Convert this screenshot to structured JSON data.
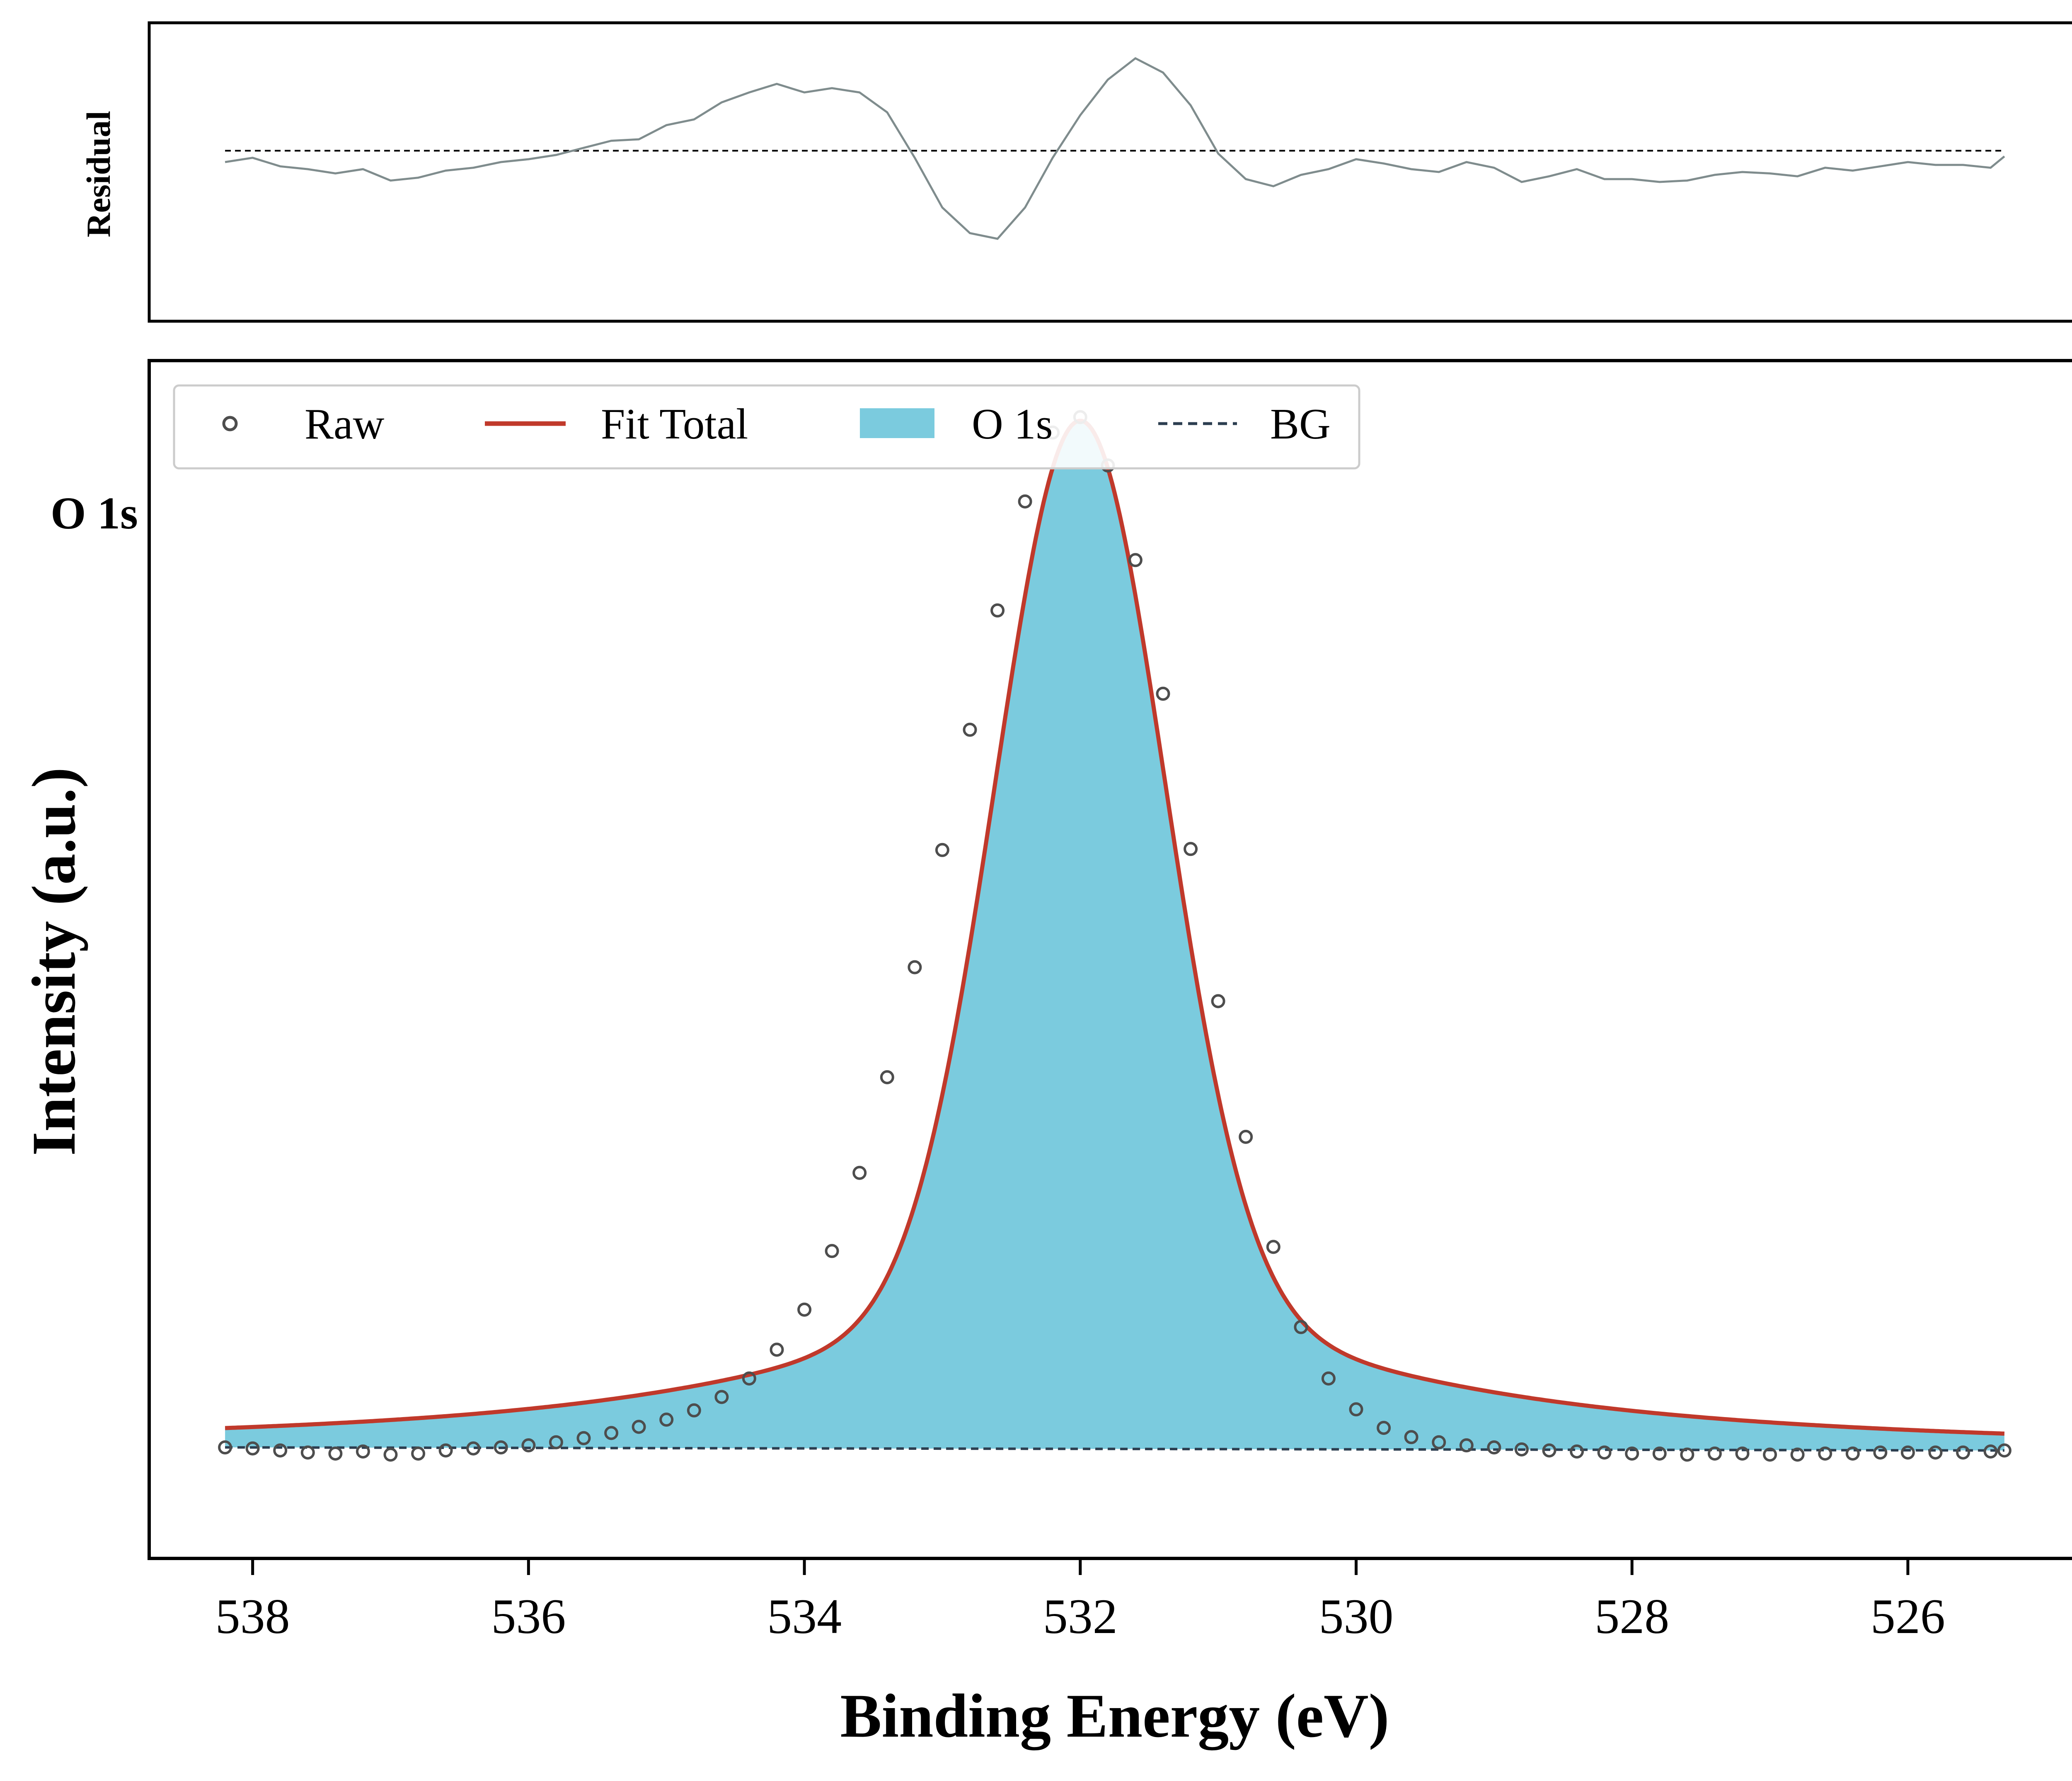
{
  "chart_data": {
    "type": "line",
    "x_axis": {
      "label": "Binding Energy (eV)",
      "reversed": true,
      "range": [
        538.75,
        524.75
      ],
      "ticks": [
        538,
        536,
        534,
        532,
        530,
        528,
        526
      ]
    },
    "y_axis": {
      "label": "Intensity (a.u.)",
      "range": [
        -0.105,
        1.06
      ],
      "ticks_shown": false
    },
    "annotation": "O 1s",
    "legend": {
      "placement": "top-left",
      "entries": [
        {
          "key": "raw",
          "label": "Raw",
          "style": "open-circle"
        },
        {
          "key": "fit",
          "label": "Fit Total",
          "style": "solid-line"
        },
        {
          "key": "peak",
          "label": "O 1s",
          "style": "filled-area"
        },
        {
          "key": "bg",
          "label": "BG",
          "style": "dashed-line"
        }
      ]
    },
    "colors": {
      "raw_marker": "#4d4d4d",
      "fit_line": "#c0392b",
      "peak_fill": "#7bcbde",
      "background_line": "#2c3e50",
      "residual_line": "#7f8c8d",
      "zero_line": "#000000"
    },
    "residual_panel": {
      "ylabel": "Residual",
      "y_range": [
        -0.12,
        0.09
      ],
      "zero_line": true
    },
    "background": {
      "x": [
        538.2,
        525.3
      ],
      "y": [
        0.003,
        0.0
      ]
    },
    "peak": {
      "center": 532.0,
      "height": 1.0,
      "sigma": 0.61,
      "gamma": 0.14
    },
    "raw": {
      "x": [
        538.2,
        538.0,
        537.8,
        537.6,
        537.4,
        537.2,
        537.0,
        536.8,
        536.6,
        536.4,
        536.2,
        536.0,
        535.8,
        535.6,
        535.4,
        535.2,
        535.0,
        534.8,
        534.6,
        534.4,
        534.2,
        534.0,
        533.8,
        533.6,
        533.4,
        533.2,
        533.0,
        532.8,
        532.6,
        532.4,
        532.2,
        532.0,
        531.8,
        531.6,
        531.4,
        531.2,
        531.0,
        530.8,
        530.6,
        530.4,
        530.2,
        530.0,
        529.8,
        529.6,
        529.4,
        529.2,
        529.0,
        528.8,
        528.6,
        528.4,
        528.2,
        528.0,
        527.8,
        527.6,
        527.4,
        527.2,
        527.0,
        526.8,
        526.6,
        526.4,
        526.2,
        526.0,
        525.8,
        525.6,
        525.4,
        525.3
      ],
      "y": [
        0.003,
        0.002,
        0.0,
        -0.002,
        -0.003,
        -0.001,
        -0.004,
        -0.003,
        0.0,
        0.002,
        0.003,
        0.005,
        0.008,
        0.012,
        0.017,
        0.023,
        0.03,
        0.039,
        0.052,
        0.07,
        0.098,
        0.137,
        0.194,
        0.27,
        0.363,
        0.47,
        0.584,
        0.701,
        0.817,
        0.923,
        0.99,
        1.005,
        0.958,
        0.866,
        0.736,
        0.585,
        0.437,
        0.305,
        0.198,
        0.12,
        0.07,
        0.04,
        0.022,
        0.013,
        0.008,
        0.005,
        0.003,
        0.001,
        0.0,
        -0.001,
        -0.002,
        -0.003,
        -0.003,
        -0.004,
        -0.003,
        -0.003,
        -0.004,
        -0.004,
        -0.003,
        -0.003,
        -0.002,
        -0.002,
        -0.002,
        -0.002,
        -0.001,
        0.0
      ]
    },
    "residual": {
      "x": [
        538.2,
        538.0,
        537.8,
        537.6,
        537.4,
        537.2,
        537.0,
        536.8,
        536.6,
        536.4,
        536.2,
        536.0,
        535.8,
        535.6,
        535.4,
        535.2,
        535.0,
        534.8,
        534.6,
        534.4,
        534.2,
        534.0,
        533.8,
        533.6,
        533.4,
        533.2,
        533.0,
        532.8,
        532.6,
        532.4,
        532.2,
        532.0,
        531.8,
        531.6,
        531.4,
        531.2,
        531.0,
        530.8,
        530.6,
        530.4,
        530.2,
        530.0,
        529.8,
        529.6,
        529.4,
        529.2,
        529.0,
        528.8,
        528.6,
        528.4,
        528.2,
        528.0,
        527.8,
        527.6,
        527.4,
        527.2,
        527.0,
        526.8,
        526.6,
        526.4,
        526.2,
        526.0,
        525.8,
        525.6,
        525.4,
        525.3
      ],
      "y": [
        -0.008,
        -0.005,
        -0.011,
        -0.013,
        -0.016,
        -0.013,
        -0.021,
        -0.019,
        -0.014,
        -0.012,
        -0.008,
        -0.006,
        -0.003,
        0.002,
        0.007,
        0.008,
        0.018,
        0.022,
        0.034,
        0.041,
        0.047,
        0.041,
        0.044,
        0.041,
        0.027,
        -0.005,
        -0.04,
        -0.058,
        -0.062,
        -0.04,
        -0.005,
        0.025,
        0.05,
        0.065,
        0.055,
        0.032,
        -0.002,
        -0.02,
        -0.025,
        -0.017,
        -0.013,
        -0.006,
        -0.009,
        -0.013,
        -0.015,
        -0.008,
        -0.012,
        -0.022,
        -0.018,
        -0.013,
        -0.02,
        -0.02,
        -0.022,
        -0.021,
        -0.017,
        -0.015,
        -0.016,
        -0.018,
        -0.012,
        -0.014,
        -0.011,
        -0.008,
        -0.01,
        -0.01,
        -0.012,
        -0.004
      ]
    }
  }
}
